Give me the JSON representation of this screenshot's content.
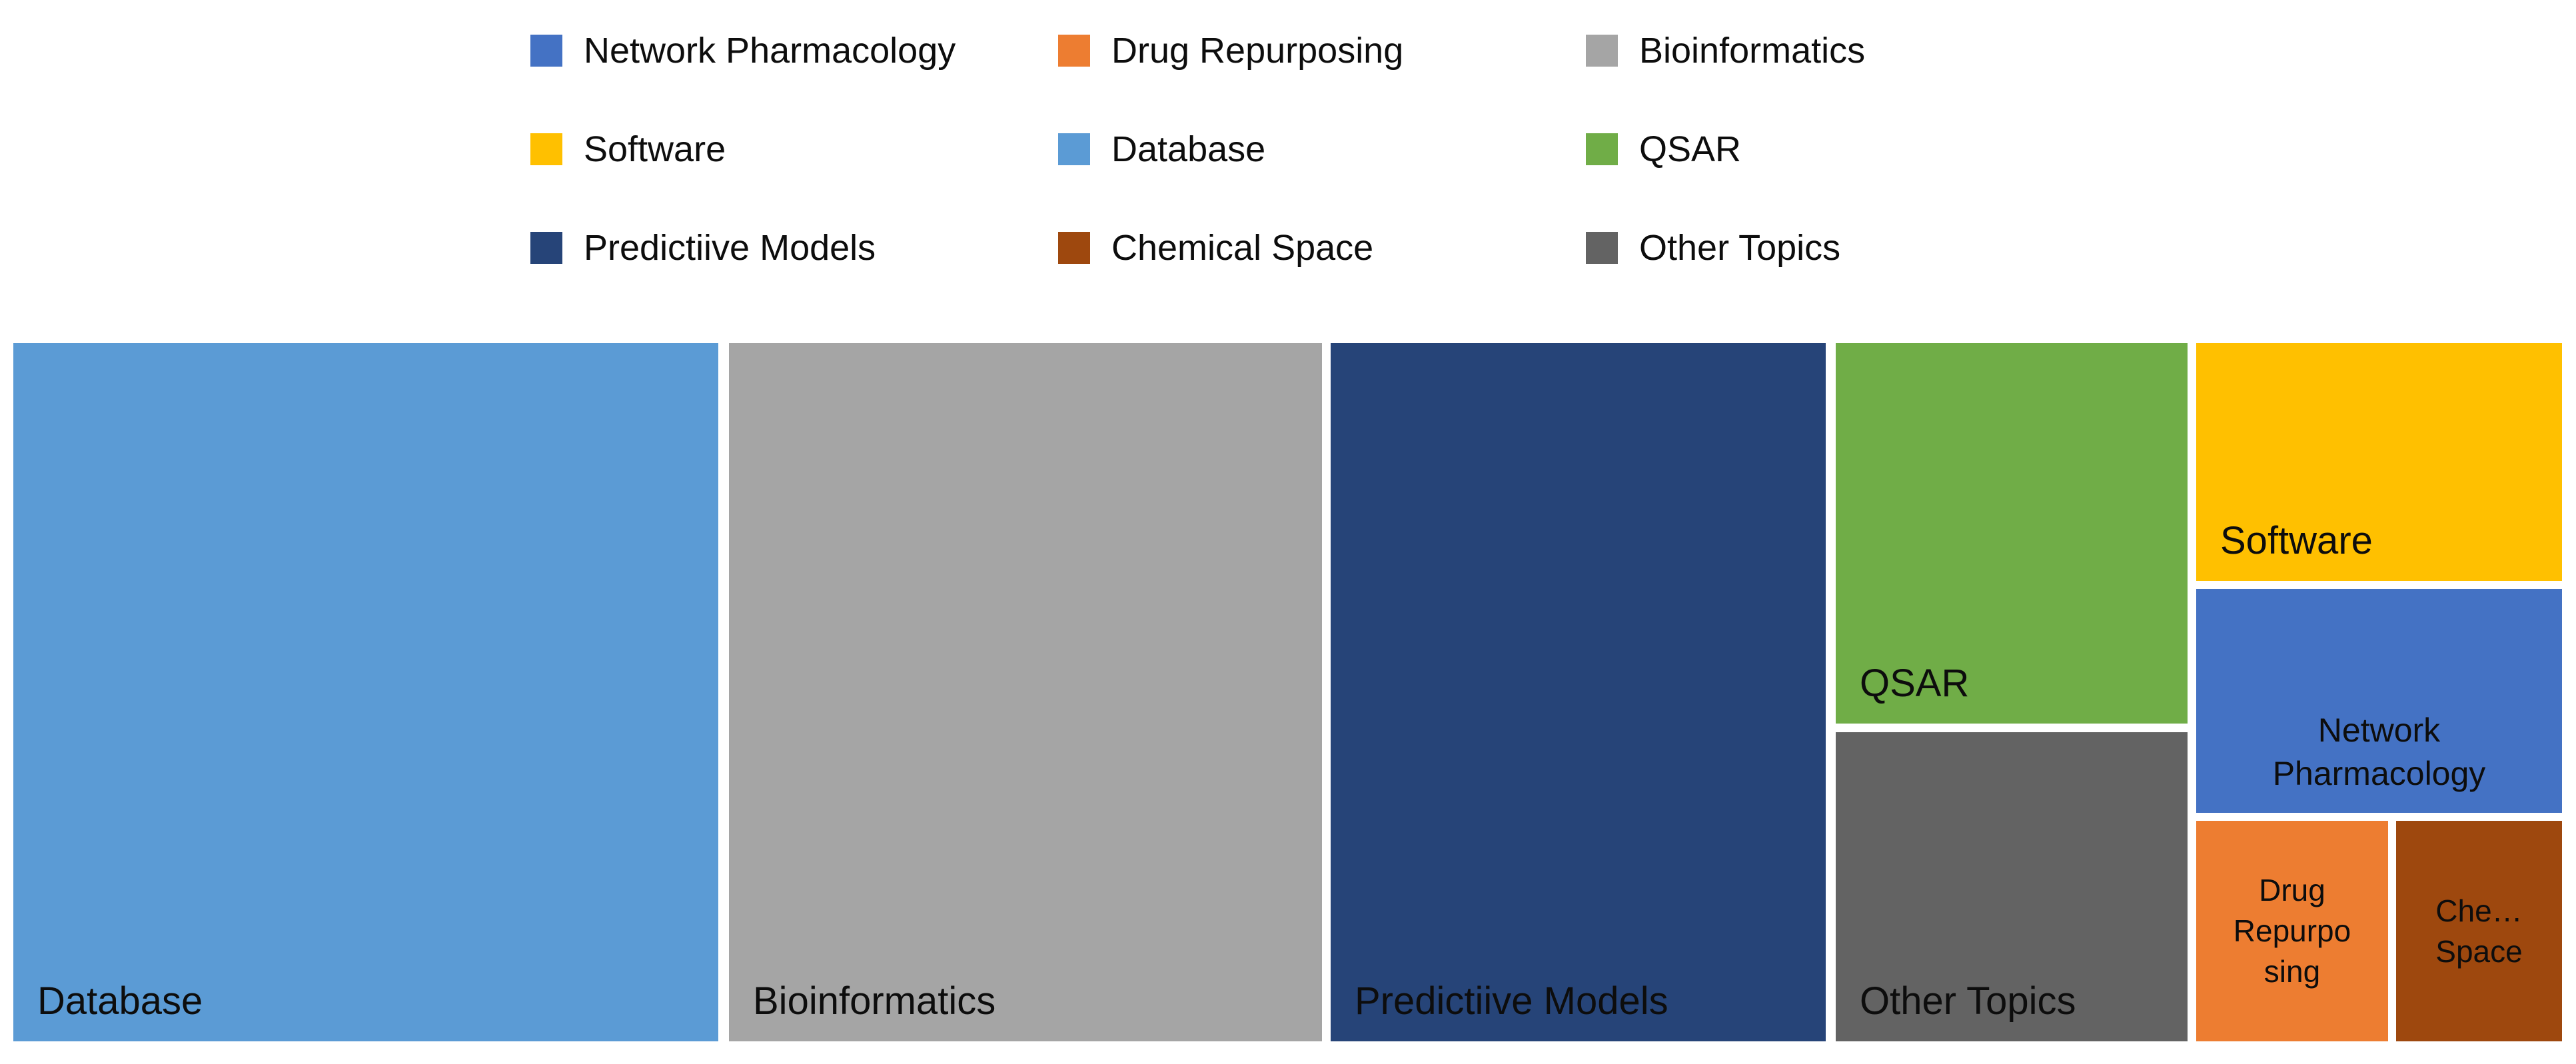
{
  "chart_data": {
    "type": "treemap",
    "title": "",
    "legend_position": "top",
    "legend": {
      "entries": [
        {
          "label": "Network Pharmacology",
          "color": "#4472C4"
        },
        {
          "label": "Drug Repurposing",
          "color": "#ED7D31"
        },
        {
          "label": "Bioinformatics",
          "color": "#A5A5A5"
        },
        {
          "label": "Software",
          "color": "#FFC000"
        },
        {
          "label": "Database",
          "color": "#5B9BD5"
        },
        {
          "label": "QSAR",
          "color": "#70AD47"
        },
        {
          "label": "Predictiive Models",
          "color": "#264478"
        },
        {
          "label": "Chemical Space",
          "color": "#9E480E"
        },
        {
          "label": "Other Topics",
          "color": "#636363"
        }
      ]
    },
    "nodes": [
      {
        "label": "Database",
        "color": "#5B9BD5",
        "share_pct_est": 28.2,
        "lines": [
          "Database"
        ]
      },
      {
        "label": "Bioinformatics",
        "color": "#A5A5A5",
        "share_pct_est": 23.7,
        "lines": [
          "Bioinformatics"
        ]
      },
      {
        "label": "Predictiive Models",
        "color": "#264478",
        "share_pct_est": 19.8,
        "lines": [
          "Predictiive Models"
        ]
      },
      {
        "label": "QSAR",
        "color": "#70AD47",
        "share_pct_est": 7.7,
        "lines": [
          "QSAR"
        ]
      },
      {
        "label": "Other Topics",
        "color": "#636363",
        "share_pct_est": 6.2,
        "lines": [
          "Other Topics"
        ]
      },
      {
        "label": "Software",
        "color": "#FFC000",
        "share_pct_est": 5.0,
        "lines": [
          "Software"
        ]
      },
      {
        "label": "Network Pharmacology",
        "color": "#4472C4",
        "share_pct_est": 4.7,
        "lines": [
          "Network",
          "Pharmacology"
        ]
      },
      {
        "label": "Drug Repurposing",
        "color": "#ED7D31",
        "share_pct_est": 2.4,
        "lines": [
          "Drug",
          "Repurpo",
          "sing"
        ]
      },
      {
        "label": "Chemical Space",
        "color": "#9E480E",
        "share_pct_est": 2.1,
        "lines": [
          "Che…",
          "Space"
        ]
      }
    ]
  }
}
